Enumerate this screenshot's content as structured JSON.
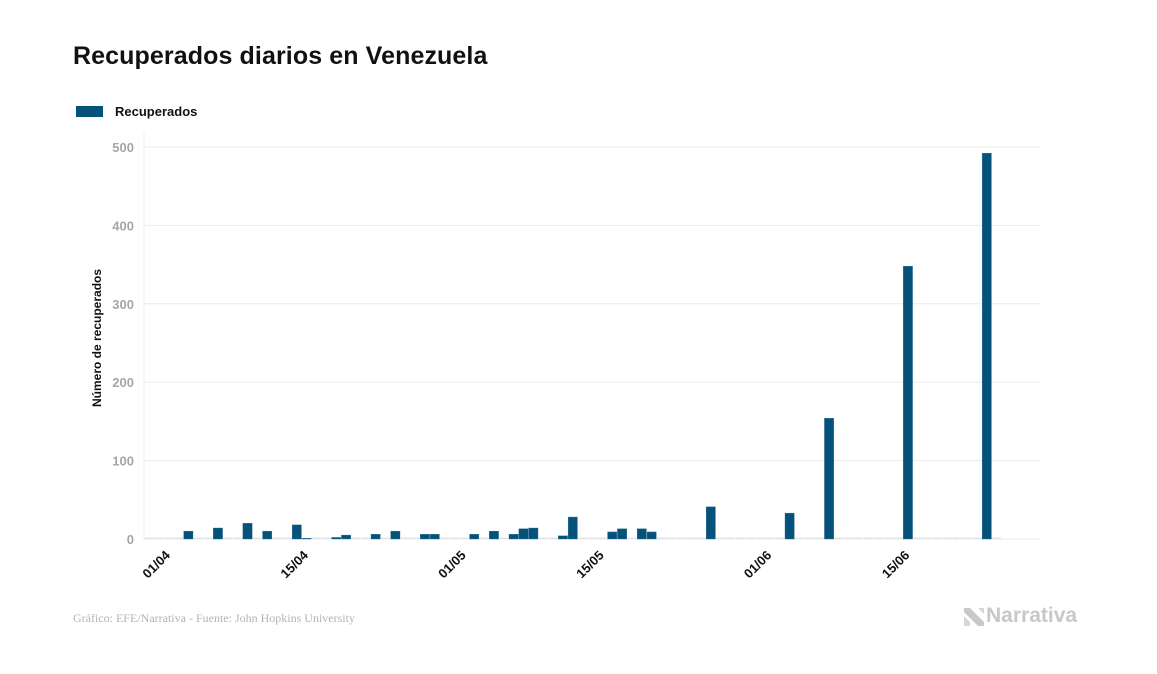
{
  "title": "Recuperados diarios en Venezuela",
  "legend": [
    {
      "label": "Recuperados",
      "color": "#04527a"
    }
  ],
  "footer": "Gráfico: EFE/Narrativa - Fuente: John Hopkins University",
  "logo": {
    "text": "Narrativa",
    "icon": "narrativa-n-icon"
  },
  "colors": {
    "bar": "#04527a",
    "grid": "#ececec",
    "axis_text": "#a6a6a6",
    "zero_bar": "#dfe4e8"
  },
  "chart_data": {
    "type": "bar",
    "title": "Recuperados diarios en Venezuela",
    "xlabel": "",
    "ylabel": "Número de recuperados",
    "ylim": [
      0,
      500
    ],
    "yticks": [
      0,
      100,
      200,
      300,
      400,
      500
    ],
    "grid": true,
    "legend_position": "top-left",
    "x_domain": [
      "01/04",
      "30/06"
    ],
    "xtick_labels": [
      "01/04",
      "15/04",
      "01/05",
      "15/05",
      "01/06",
      "15/06"
    ],
    "categories": [
      "01/04",
      "02/04",
      "03/04",
      "04/04",
      "05/04",
      "06/04",
      "07/04",
      "08/04",
      "09/04",
      "10/04",
      "11/04",
      "12/04",
      "13/04",
      "14/04",
      "15/04",
      "16/04",
      "17/04",
      "18/04",
      "19/04",
      "20/04",
      "21/04",
      "22/04",
      "23/04",
      "24/04",
      "25/04",
      "26/04",
      "27/04",
      "28/04",
      "29/04",
      "30/04",
      "01/05",
      "02/05",
      "03/05",
      "04/05",
      "05/05",
      "06/05",
      "07/05",
      "08/05",
      "09/05",
      "10/05",
      "11/05",
      "12/05",
      "13/05",
      "14/05",
      "15/05",
      "16/05",
      "17/05",
      "18/05",
      "19/05",
      "20/05",
      "21/05",
      "22/05",
      "23/05",
      "24/05",
      "25/05",
      "26/05",
      "27/05",
      "28/05",
      "29/05",
      "30/05",
      "31/05",
      "01/06",
      "02/06",
      "03/06",
      "04/06",
      "05/06",
      "06/06",
      "07/06",
      "08/06",
      "09/06",
      "10/06",
      "11/06",
      "12/06",
      "13/06",
      "14/06",
      "15/06",
      "16/06",
      "17/06",
      "18/06",
      "19/06",
      "20/06",
      "21/06",
      "22/06",
      "23/06",
      "24/06",
      "25/06",
      "26/06"
    ],
    "series": [
      {
        "name": "Recuperados",
        "values": [
          0,
          0,
          0,
          0,
          10,
          0,
          0,
          14,
          0,
          0,
          20,
          0,
          10,
          0,
          0,
          18,
          1,
          0,
          0,
          2,
          5,
          0,
          0,
          6,
          0,
          10,
          0,
          0,
          6,
          6,
          0,
          0,
          0,
          6,
          0,
          10,
          0,
          6,
          13,
          14,
          0,
          0,
          4,
          28,
          0,
          0,
          0,
          9,
          13,
          0,
          13,
          9,
          0,
          0,
          0,
          0,
          0,
          41,
          0,
          0,
          0,
          0,
          0,
          0,
          0,
          33,
          0,
          0,
          0,
          154,
          0,
          0,
          0,
          0,
          0,
          0,
          0,
          348,
          0,
          0,
          0,
          0,
          0,
          0,
          0,
          492,
          0
        ]
      }
    ]
  }
}
